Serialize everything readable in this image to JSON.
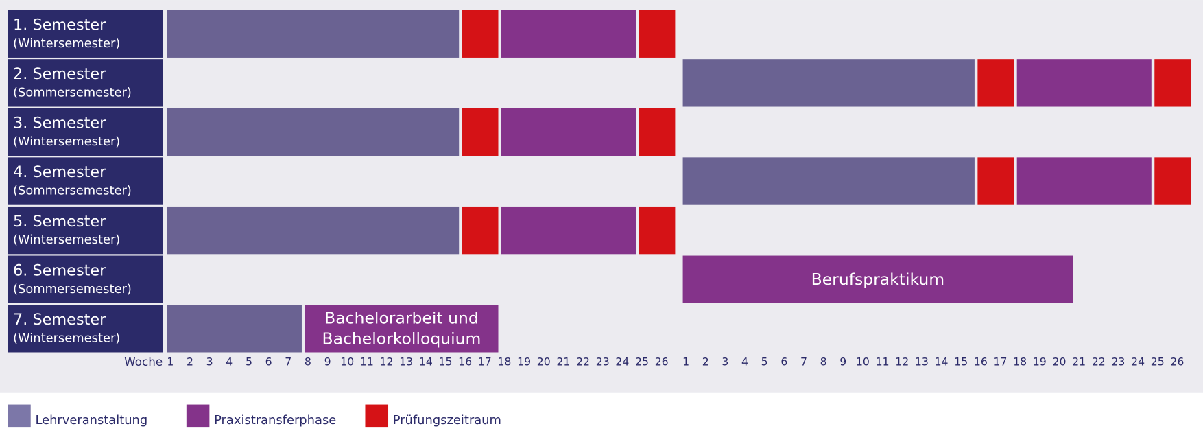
{
  "legend": [
    {
      "label": "Lehrveranstaltung",
      "color": "#6a6292",
      "swatch": "#7c77a8"
    },
    {
      "label": "Praxistransferphase",
      "color": "#84338a",
      "swatch": "#84338a"
    },
    {
      "label": "Prüfungszeitraum",
      "color": "#d51216",
      "swatch": "#d51216"
    }
  ],
  "axis": {
    "label": "Woche",
    "weeks": [
      1,
      2,
      3,
      4,
      5,
      6,
      7,
      8,
      9,
      10,
      11,
      12,
      13,
      14,
      15,
      16,
      17,
      18,
      19,
      20,
      21,
      22,
      23,
      24,
      25,
      26
    ]
  },
  "rows": [
    {
      "title": "1. Semester",
      "subtitle": "(Wintersemester)",
      "segments": [
        {
          "category": 0,
          "block": 0,
          "start": 1,
          "end": 15
        },
        {
          "category": 2,
          "block": 0,
          "start": 16,
          "end": 17
        },
        {
          "category": 1,
          "block": 0,
          "start": 18,
          "end": 24
        },
        {
          "category": 2,
          "block": 0,
          "start": 25,
          "end": 26
        }
      ]
    },
    {
      "title": "2. Semester",
      "subtitle": "(Sommersemester)",
      "segments": [
        {
          "category": 0,
          "block": 1,
          "start": 1,
          "end": 15
        },
        {
          "category": 2,
          "block": 1,
          "start": 16,
          "end": 17
        },
        {
          "category": 1,
          "block": 1,
          "start": 18,
          "end": 24
        },
        {
          "category": 2,
          "block": 1,
          "start": 25,
          "end": 26
        }
      ]
    },
    {
      "title": "3. Semester",
      "subtitle": "(Wintersemester)",
      "segments": [
        {
          "category": 0,
          "block": 0,
          "start": 1,
          "end": 15
        },
        {
          "category": 2,
          "block": 0,
          "start": 16,
          "end": 17
        },
        {
          "category": 1,
          "block": 0,
          "start": 18,
          "end": 24
        },
        {
          "category": 2,
          "block": 0,
          "start": 25,
          "end": 26
        }
      ]
    },
    {
      "title": "4. Semester",
      "subtitle": "(Sommersemester)",
      "segments": [
        {
          "category": 0,
          "block": 1,
          "start": 1,
          "end": 15
        },
        {
          "category": 2,
          "block": 1,
          "start": 16,
          "end": 17
        },
        {
          "category": 1,
          "block": 1,
          "start": 18,
          "end": 24
        },
        {
          "category": 2,
          "block": 1,
          "start": 25,
          "end": 26
        }
      ]
    },
    {
      "title": "5. Semester",
      "subtitle": "(Wintersemester)",
      "segments": [
        {
          "category": 0,
          "block": 0,
          "start": 1,
          "end": 15
        },
        {
          "category": 2,
          "block": 0,
          "start": 16,
          "end": 17
        },
        {
          "category": 1,
          "block": 0,
          "start": 18,
          "end": 24
        },
        {
          "category": 2,
          "block": 0,
          "start": 25,
          "end": 26
        }
      ]
    },
    {
      "title": "6. Semester",
      "subtitle": "(Sommersemester)",
      "segments": [
        {
          "category": 1,
          "block": 1,
          "start": 1,
          "end": 20,
          "label_lines": [
            "Berufspraktikum"
          ]
        }
      ]
    },
    {
      "title": "7. Semester",
      "subtitle": "(Wintersemester)",
      "segments": [
        {
          "category": 0,
          "block": 0,
          "start": 1,
          "end": 7
        },
        {
          "category": 1,
          "block": 0,
          "start": 8,
          "end": 17,
          "label_lines": [
            "Bachelorarbeit und",
            "Bachelorkolloquium"
          ]
        }
      ]
    }
  ]
}
